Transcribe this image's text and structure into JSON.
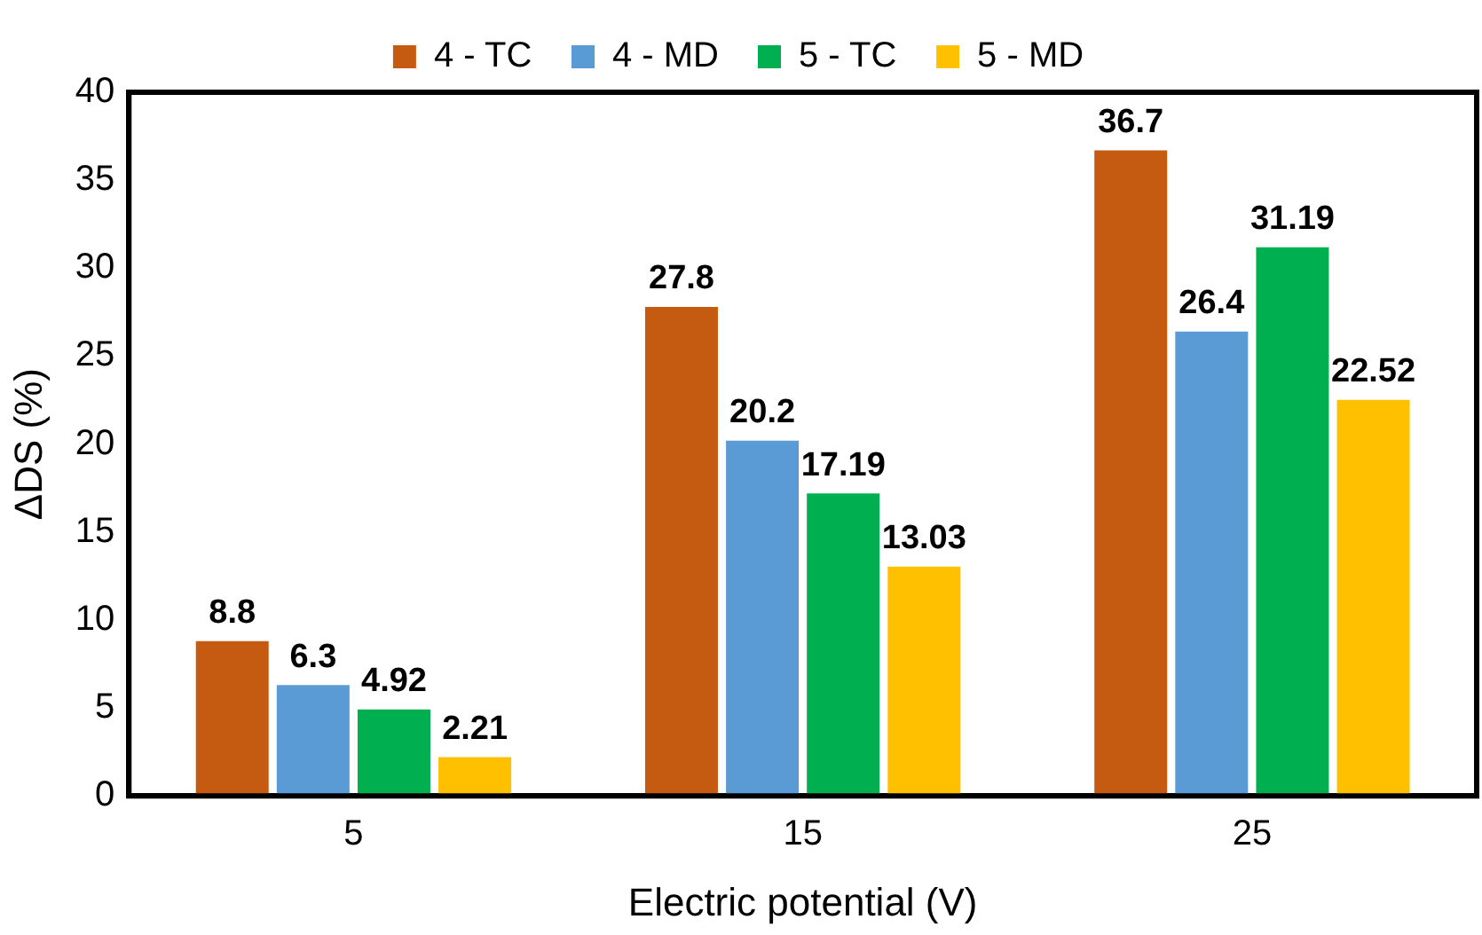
{
  "chart_data": {
    "type": "bar",
    "xlabel": "Electric potential (V)",
    "ylabel": "ΔDS (%)",
    "categories": [
      "5",
      "15",
      "25"
    ],
    "series": [
      {
        "name": "4 - TC",
        "color": "#c55a11",
        "values": [
          8.8,
          27.8,
          36.7
        ]
      },
      {
        "name": "4 - MD",
        "color": "#5b9bd5",
        "values": [
          6.3,
          20.2,
          26.4
        ]
      },
      {
        "name": "5 - TC",
        "color": "#00b050",
        "values": [
          4.92,
          17.19,
          31.19
        ]
      },
      {
        "name": "5 - MD",
        "color": "#ffc000",
        "values": [
          2.21,
          13.03,
          22.52
        ]
      }
    ],
    "ylim": [
      0,
      40
    ],
    "yticks": [
      0,
      5,
      10,
      15,
      20,
      25,
      30,
      35,
      40
    ],
    "grid": false,
    "legend": "top",
    "data_labels": true
  }
}
